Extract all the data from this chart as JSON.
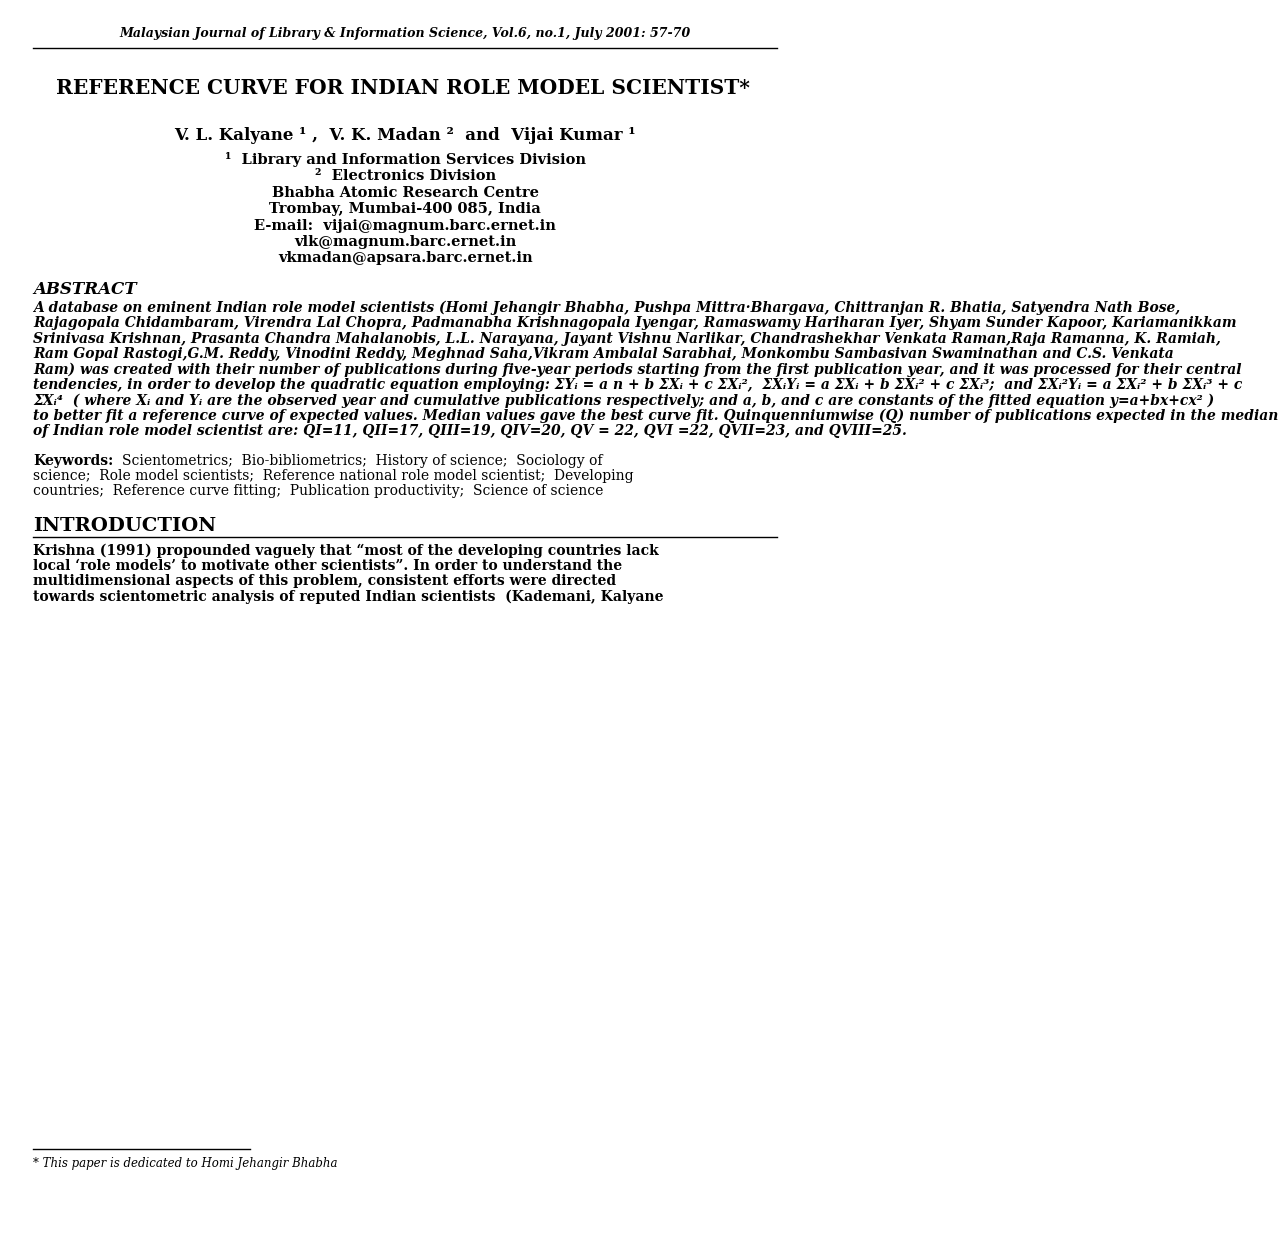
{
  "bg_color": "#ffffff",
  "header_text": "Malaysian Journal of Library & Information Science, Vol.6, no.1, July 2001: 57-70",
  "title": "REFERENCE CURVE FOR INDIAN ROLE MODEL SCIENTIST*",
  "authors_line": "V. L. Kalyane ¹ ,  V. K. Madan ²  and  Vijai Kumar ¹",
  "affil1": "¹  Library and Information Services Division",
  "affil2": "²  Electronics Division",
  "affil3": "Bhabha Atomic Research Centre",
  "affil4": "Trombay, Mumbai-400 085, India",
  "email_line1": "E-mail:  vijai@magnum.barc.ernet.in",
  "email_line2": "vlk@magnum.barc.ernet.in",
  "email_line3": "vkmadan@apsara.barc.ernet.in",
  "abstract_head": "ABSTRACT",
  "abstract_lines": [
    "A database on eminent Indian role model scientists (Homi Jehangir Bhabha, Pushpa Mittra·Bhargava, Chittranjan R. Bhatia, Satyendra Nath Bose,",
    "Rajagopala Chidambaram, Virendra Lal Chopra, Padmanabha Krishnagopala Iyengar, Ramaswamy Hariharan Iyer, Shyam Sunder Kapoor, Kariamanikkam",
    "Srinivasa Krishnan, Prasanta Chandra Mahalanobis, L.L. Narayana, Jayant Vishnu Narlikar, Chandrashekhar Venkata Raman,Raja Ramanna, K. Ramiah,",
    "Ram Gopal Rastogi,G.M. Reddy, Vinodini Reddy, Meghnad Saha,Vikram Ambalal Sarabhai, Monkombu Sambasivan Swaminathan and C.S. Venkata",
    "Ram) was created with their number of publications during five-year periods starting from the first publication year, and it was processed for their central",
    "tendencies, in order to develop the quadratic equation employing: ΣYᵢ = a n + b ΣXᵢ + c ΣXᵢ²,  ΣXᵢYᵢ = a ΣXᵢ + b ΣXᵢ² + c ΣXᵢ³;  and ΣXᵢ²Yᵢ = a ΣXᵢ² + b ΣXᵢ³ + c",
    "ΣXᵢ⁴  ( where Xᵢ and Yᵢ are the observed year and cumulative publications respectively; and a, b, and c are constants of the fitted equation y=a+bx+cx² )",
    "to better fit a reference curve of expected values. Median values gave the best curve fit. Quinquenniumwise (Q) number of publications expected in the median",
    "of Indian role model scientist are: QI=11, QII=17, QIII=19, QIV=20, QV = 22, QVI =22, QVII=23, and QVIII=25."
  ],
  "keywords_head": "Keywords",
  "keywords_lines": [
    "Scientometrics;  Bio-bibliometrics;  History of science;  Sociology of",
    "science;  Role model scientists;  Reference national role model scientist;  Developing",
    "countries;  Reference curve fitting;  Publication productivity;  Science of science"
  ],
  "intro_head": "INTRODUCTION",
  "intro_lines": [
    "Krishna (1991) propounded vaguely that “most of the developing countries lack",
    "local ‘role models’ to motivate other scientists”. In order to understand the",
    "multidimensional aspects of this problem, consistent efforts were directed",
    "towards scientometric analysis of reputed Indian scientists  (Kademani, Kalyane"
  ],
  "footnote": "* This paper is dedicated to Homi Jehangir Bhabha"
}
